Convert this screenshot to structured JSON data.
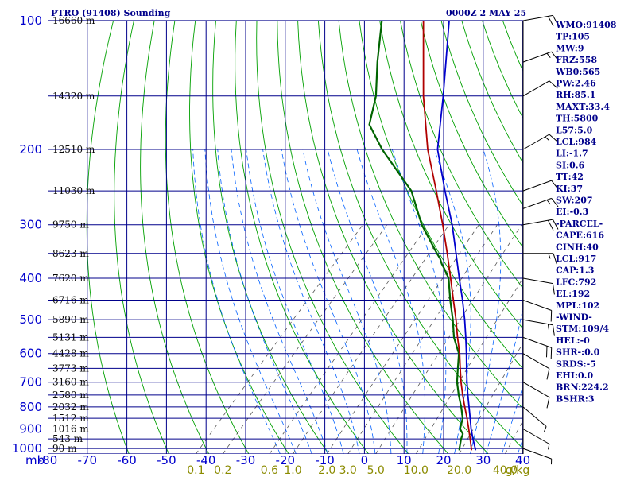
{
  "header": {
    "station": "PTRO (91408) Sounding",
    "time": "0000Z  2 MAY 25"
  },
  "colors": {
    "temperature": "#006400",
    "dewpoint_line": "#b00000",
    "parcel": "#0000cd",
    "grid": "#00008b",
    "dry_adiabat": "#00a000",
    "moist_adiabat": "#0060ff",
    "mixing_ratio": "#555555"
  },
  "chart_data": {
    "type": "line",
    "diagram": "skew-T log-p",
    "pressure_unit": "mb",
    "temperature_axis": {
      "ticks": [
        -80,
        -70,
        -60,
        -50,
        -40,
        -30,
        -20,
        -10,
        0,
        10,
        20,
        30,
        40
      ],
      "labels": [
        "-80",
        "-70",
        "-60",
        "-50",
        "-40",
        "-30",
        "-20",
        "-10",
        "0",
        "10",
        "20",
        "30",
        "40"
      ]
    },
    "pressure_levels": [
      100,
      200,
      300,
      400,
      500,
      600,
      700,
      800,
      900,
      1000
    ],
    "pressure_labels": [
      "100",
      "200",
      "300",
      "400",
      "500",
      "600",
      "700",
      "800",
      "900",
      "1000"
    ],
    "unit_label": "mb",
    "heights": [
      {
        "p": 100,
        "label": "16660 m"
      },
      {
        "p": 150,
        "label": "14320 m"
      },
      {
        "p": 200,
        "label": "12510 m"
      },
      {
        "p": 250,
        "label": "11030 m"
      },
      {
        "p": 300,
        "label": "9750 m"
      },
      {
        "p": 350,
        "label": "8623 m"
      },
      {
        "p": 400,
        "label": "7620 m"
      },
      {
        "p": 450,
        "label": "6716 m"
      },
      {
        "p": 500,
        "label": "5890 m"
      },
      {
        "p": 550,
        "label": "5131 m"
      },
      {
        "p": 600,
        "label": "4428 m"
      },
      {
        "p": 650,
        "label": "3773 m"
      },
      {
        "p": 700,
        "label": "3160 m"
      },
      {
        "p": 750,
        "label": "2580 m"
      },
      {
        "p": 800,
        "label": "2032 m"
      },
      {
        "p": 850,
        "label": "1512 m"
      },
      {
        "p": 900,
        "label": "1016 m"
      },
      {
        "p": 950,
        "label": "543 m"
      },
      {
        "p": 1000,
        "label": "90 m"
      }
    ],
    "mixing_ratio_lines": [
      {
        "w": 0.1,
        "label": "0.1"
      },
      {
        "w": 0.2,
        "label": "0.2"
      },
      {
        "w": 0.6,
        "label": "0.6"
      },
      {
        "w": 1.0,
        "label": "1.0"
      },
      {
        "w": 2.0,
        "label": "2.0"
      },
      {
        "w": 3.0,
        "label": "3.0"
      },
      {
        "w": 5.0,
        "label": "5.0"
      },
      {
        "w": 10.0,
        "label": "10.0"
      },
      {
        "w": 20.0,
        "label": "20.0"
      },
      {
        "w": 40.0,
        "label": "40.0"
      }
    ],
    "mixing_ratio_unit": "g/kg",
    "series": [
      {
        "key": "temperature",
        "points": [
          {
            "p": 1010,
            "t": 24.4
          },
          {
            "p": 1000,
            "t": 24.0
          },
          {
            "p": 950,
            "t": 22.2
          },
          {
            "p": 925,
            "t": 21.5
          },
          {
            "p": 900,
            "t": 19.6
          },
          {
            "p": 850,
            "t": 17.8
          },
          {
            "p": 800,
            "t": 14.8
          },
          {
            "p": 750,
            "t": 11.4
          },
          {
            "p": 700,
            "t": 8.0
          },
          {
            "p": 650,
            "t": 5.0
          },
          {
            "p": 600,
            "t": 1.8
          },
          {
            "p": 550,
            "t": -3.2
          },
          {
            "p": 500,
            "t": -7.6
          },
          {
            "p": 450,
            "t": -12.8
          },
          {
            "p": 400,
            "t": -18.3
          },
          {
            "p": 380,
            "t": -21.6
          },
          {
            "p": 370,
            "t": -23.4
          },
          {
            "p": 360,
            "t": -25.0
          },
          {
            "p": 350,
            "t": -27.0
          },
          {
            "p": 300,
            "t": -37.5
          },
          {
            "p": 250,
            "t": -48.0
          },
          {
            "p": 200,
            "t": -65.0
          },
          {
            "p": 175,
            "t": -74.0
          },
          {
            "p": 150,
            "t": -79.0
          },
          {
            "p": 125,
            "t": -86.5
          },
          {
            "p": 100,
            "t": -95.0
          }
        ]
      },
      {
        "key": "dewpoint_line",
        "points": [
          {
            "p": 1010,
            "t": 27.5
          },
          {
            "p": 1000,
            "t": 27.0
          },
          {
            "p": 950,
            "t": 24.5
          },
          {
            "p": 900,
            "t": 21.8
          },
          {
            "p": 850,
            "t": 18.9
          },
          {
            "p": 800,
            "t": 15.7
          },
          {
            "p": 750,
            "t": 12.4
          },
          {
            "p": 700,
            "t": 9.0
          },
          {
            "p": 650,
            "t": 5.6
          },
          {
            "p": 600,
            "t": 2.0
          },
          {
            "p": 550,
            "t": -2.3
          },
          {
            "p": 500,
            "t": -6.8
          },
          {
            "p": 450,
            "t": -12.0
          },
          {
            "p": 400,
            "t": -17.8
          },
          {
            "p": 350,
            "t": -24.4
          },
          {
            "p": 300,
            "t": -32.2
          },
          {
            "p": 250,
            "t": -41.7
          },
          {
            "p": 200,
            "t": -53.5
          },
          {
            "p": 150,
            "t": -67.0
          },
          {
            "p": 100,
            "t": -84.5
          }
        ]
      },
      {
        "key": "parcel",
        "points": [
          {
            "p": 1010,
            "t": 28.5
          },
          {
            "p": 1000,
            "t": 28.0
          },
          {
            "p": 950,
            "t": 25.2
          },
          {
            "p": 900,
            "t": 22.4
          },
          {
            "p": 850,
            "t": 19.7
          },
          {
            "p": 800,
            "t": 16.8
          },
          {
            "p": 750,
            "t": 13.7
          },
          {
            "p": 700,
            "t": 10.5
          },
          {
            "p": 650,
            "t": 7.2
          },
          {
            "p": 600,
            "t": 3.7
          },
          {
            "p": 550,
            "t": -0.2
          },
          {
            "p": 500,
            "t": -4.6
          },
          {
            "p": 450,
            "t": -9.7
          },
          {
            "p": 400,
            "t": -15.6
          },
          {
            "p": 350,
            "t": -22.2
          },
          {
            "p": 300,
            "t": -29.8
          },
          {
            "p": 250,
            "t": -39.5
          },
          {
            "p": 200,
            "t": -51.0
          },
          {
            "p": 150,
            "t": -62.0
          },
          {
            "p": 100,
            "t": -78.0
          }
        ]
      }
    ],
    "wind_barbs": [
      {
        "p": 100,
        "dir": 80,
        "spd": 20
      },
      {
        "p": 125,
        "dir": 70,
        "spd": 15
      },
      {
        "p": 150,
        "dir": 60,
        "spd": 10
      },
      {
        "p": 200,
        "dir": 60,
        "spd": 15
      },
      {
        "p": 250,
        "dir": 70,
        "spd": 10
      },
      {
        "p": 275,
        "dir": 70,
        "spd": 15
      },
      {
        "p": 300,
        "dir": 80,
        "spd": 20
      },
      {
        "p": 350,
        "dir": 90,
        "spd": 15
      },
      {
        "p": 400,
        "dir": 100,
        "spd": 10
      },
      {
        "p": 450,
        "dir": 110,
        "spd": 10
      },
      {
        "p": 500,
        "dir": 100,
        "spd": 15
      },
      {
        "p": 550,
        "dir": 110,
        "spd": 20
      },
      {
        "p": 600,
        "dir": 120,
        "spd": 10
      },
      {
        "p": 700,
        "dir": 120,
        "spd": 10
      },
      {
        "p": 800,
        "dir": 130,
        "spd": 5
      },
      {
        "p": 900,
        "dir": 120,
        "spd": 5
      },
      {
        "p": 1000,
        "dir": 110,
        "spd": 5
      }
    ]
  },
  "indices": [
    "WMO:91408",
    "TP:105",
    "MW:9",
    "FRZ:558",
    "WB0:565",
    "PW:2.46",
    "RH:85.1",
    "MAXT:33.4",
    "TH:5800",
    "L57:5.0",
    "LCL:984",
    "LI:-1.7",
    "SI:0.6",
    "TT:42",
    "KI:37",
    "SW:207",
    "EI:-0.3",
    "-PARCEL-",
    "CAPE:616",
    "CINH:40",
    "LCL:917",
    "CAP:1.3",
    "LFC:792",
    "EL:192",
    "MPL:102",
    "-WIND-",
    "STM:109/4",
    "HEL:-0",
    "SHR-:0.0",
    "SRDS:-5",
    "EHI:0.0",
    "BRN:224.2",
    "BSHR:3"
  ]
}
